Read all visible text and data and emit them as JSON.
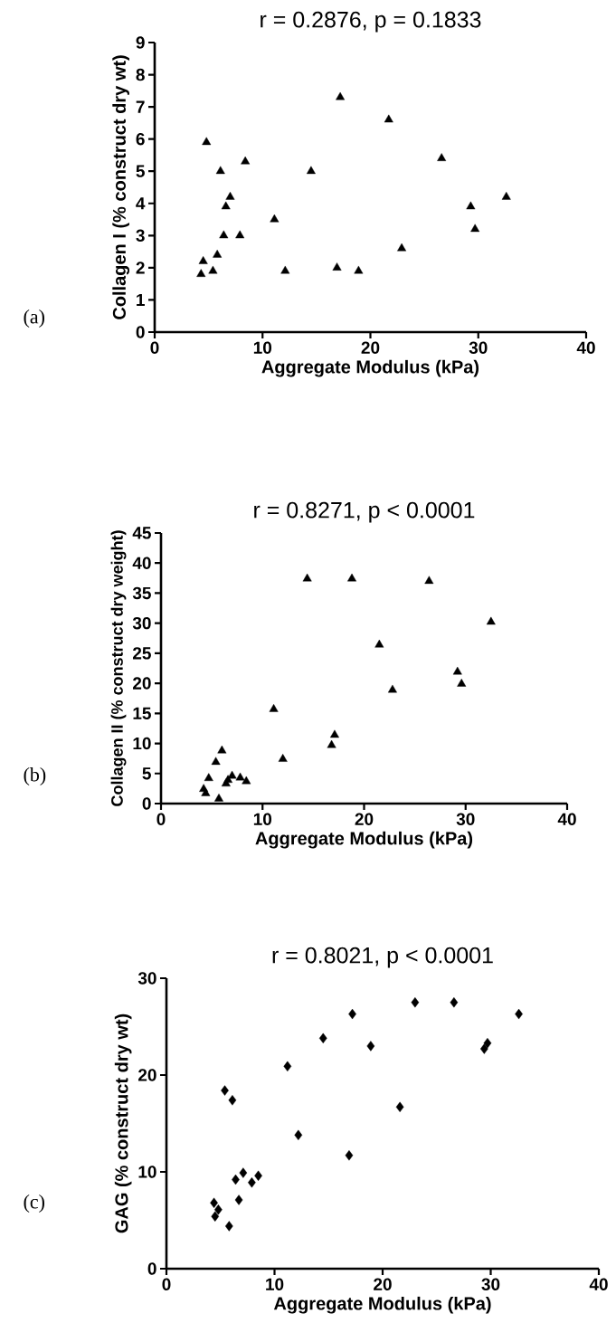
{
  "chart_data": [
    {
      "type": "scatter",
      "title": "r = 0.2876, p = 0.1833",
      "xlabel": "Aggregate Modulus (kPa)",
      "ylabel": "Collagen I (% construct dry wt)",
      "annotations": [
        "(a)"
      ],
      "marker": "triangle",
      "color": "#000000",
      "x": [
        4.8,
        6.1,
        8.4,
        7.0,
        6.6,
        11.1,
        6.4,
        7.9,
        5.8,
        4.5,
        5.4,
        4.3,
        12.1,
        14.5,
        17.2,
        16.9,
        18.9,
        21.7,
        22.9,
        26.6,
        29.3,
        29.7,
        32.6
      ],
      "values": [
        5.9,
        5.0,
        5.3,
        4.2,
        3.9,
        3.5,
        3.0,
        3.0,
        2.4,
        2.2,
        1.9,
        1.8,
        1.9,
        5.0,
        7.3,
        2.0,
        1.9,
        6.6,
        2.6,
        5.4,
        3.9,
        3.2,
        4.2
      ],
      "xlim": [
        0,
        40
      ],
      "xticks": [
        0,
        10,
        20,
        30,
        40
      ],
      "ylim": [
        0,
        9
      ],
      "yticks": [
        0,
        1,
        2,
        3,
        4,
        5,
        6,
        7,
        8,
        9
      ]
    },
    {
      "type": "scatter",
      "title": "r = 0.8271, p < 0.0001",
      "xlabel": "Aggregate Modulus (kPa)",
      "ylabel": "Collagen II (% construct dry weight)",
      "annotations": [
        "(b)"
      ],
      "marker": "triangle",
      "color": "#000000",
      "x": [
        14.4,
        18.8,
        26.4,
        32.5,
        21.5,
        29.2,
        29.6,
        22.8,
        11.1,
        17.1,
        16.8,
        12.0,
        6.0,
        5.4,
        4.7,
        4.2,
        4.4,
        5.7,
        7.0,
        6.4,
        6.6,
        7.8,
        8.4
      ],
      "values": [
        37.4,
        37.4,
        37.0,
        30.2,
        26.4,
        21.9,
        19.9,
        18.9,
        15.7,
        11.4,
        9.7,
        7.4,
        8.8,
        6.9,
        4.2,
        2.4,
        1.7,
        0.8,
        4.6,
        3.3,
        3.9,
        4.3,
        3.7
      ],
      "xlim": [
        0,
        40
      ],
      "xticks": [
        0,
        10,
        20,
        30,
        40
      ],
      "ylim": [
        0,
        45
      ],
      "yticks": [
        0,
        5,
        10,
        15,
        20,
        25,
        30,
        35,
        40,
        45
      ]
    },
    {
      "type": "scatter",
      "title": "r = 0.8021, p < 0.0001",
      "xlabel": "Aggregate Modulus (kPa)",
      "ylabel": "GAG (% construct dry wt)",
      "annotations": [
        "(c)"
      ],
      "marker": "diamond",
      "color": "#000000",
      "x": [
        23.0,
        26.6,
        17.2,
        32.6,
        14.5,
        18.9,
        29.7,
        29.4,
        11.2,
        5.4,
        6.1,
        21.6,
        12.2,
        16.9,
        7.1,
        6.4,
        8.5,
        7.9,
        6.7,
        4.4,
        4.8,
        4.5,
        5.8
      ],
      "values": [
        27.5,
        27.5,
        26.3,
        26.3,
        23.8,
        23.0,
        23.3,
        22.7,
        20.9,
        18.4,
        17.4,
        16.7,
        13.8,
        11.7,
        9.9,
        9.2,
        9.6,
        8.9,
        7.1,
        6.8,
        6.1,
        5.4,
        4.4
      ],
      "xlim": [
        0,
        40
      ],
      "xticks": [
        0,
        10,
        20,
        30,
        40
      ],
      "ylim": [
        0,
        30
      ],
      "yticks": [
        0,
        10,
        20,
        30
      ]
    }
  ]
}
